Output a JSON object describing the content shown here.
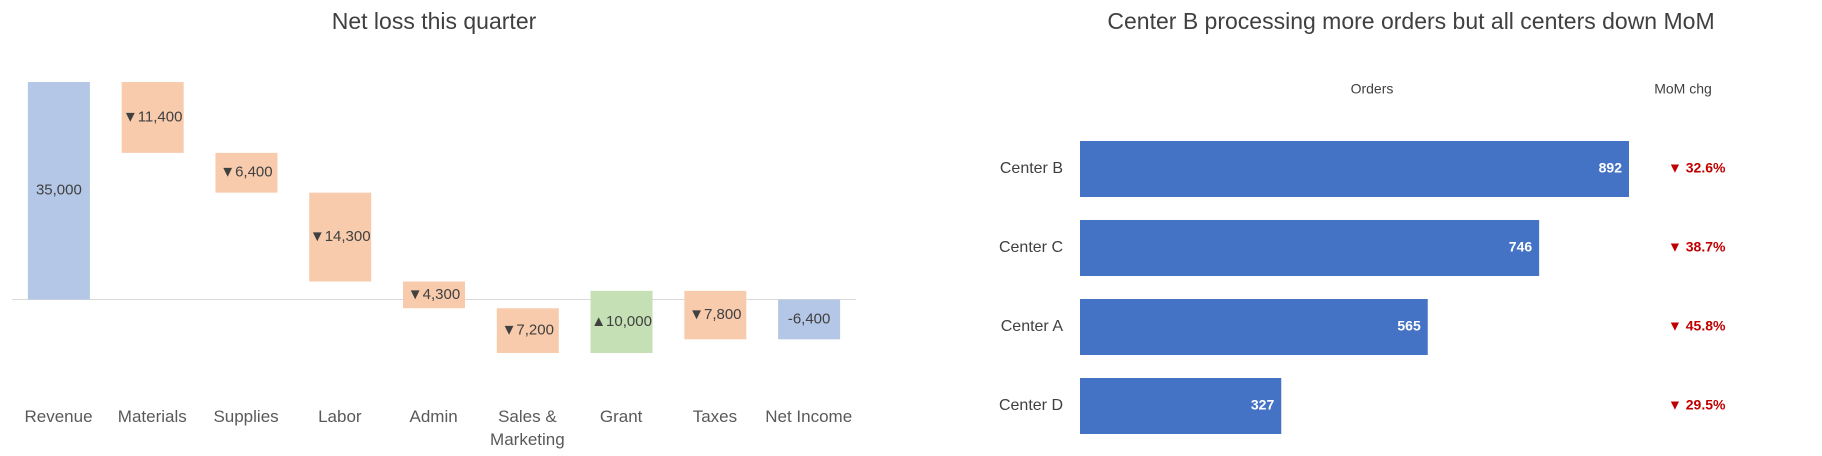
{
  "chart_data": [
    {
      "type": "waterfall",
      "title": "Net loss this quarter",
      "categories": [
        "Revenue",
        "Materials",
        "Supplies",
        "Labor",
        "Admin",
        "Sales & Marketing",
        "Grant",
        "Taxes",
        "Net Income"
      ],
      "values": [
        35000,
        -11400,
        -6400,
        -14300,
        -4300,
        -7200,
        10000,
        -7800,
        -6400
      ],
      "value_labels": [
        "35,000",
        "▼11,400",
        "▼6,400",
        "▼14,300",
        "▼4,300",
        "▼7,200",
        "▲10,000",
        "▼7,800",
        "-6,400"
      ],
      "measures": [
        "total",
        "relative",
        "relative",
        "relative",
        "relative",
        "relative",
        "relative",
        "relative",
        "total"
      ],
      "colors": {
        "total": "#b4c7e7",
        "decrease": "#f8cbad",
        "increase": "#c5e0b4"
      }
    },
    {
      "type": "hbar",
      "title": "Center B processing more orders but all centers down MoM",
      "value_header": "Orders",
      "change_header": "MoM chg",
      "categories": [
        "Center B",
        "Center C",
        "Center A",
        "Center D"
      ],
      "values": [
        892,
        746,
        565,
        327
      ],
      "changes": [
        -32.6,
        -38.7,
        -45.8,
        -29.5
      ],
      "change_labels": [
        "▼ 32.6%",
        "▼ 38.7%",
        "▼ 45.8%",
        "▼ 29.5%"
      ],
      "color": "#4472c4",
      "change_color": "#c00000"
    }
  ]
}
